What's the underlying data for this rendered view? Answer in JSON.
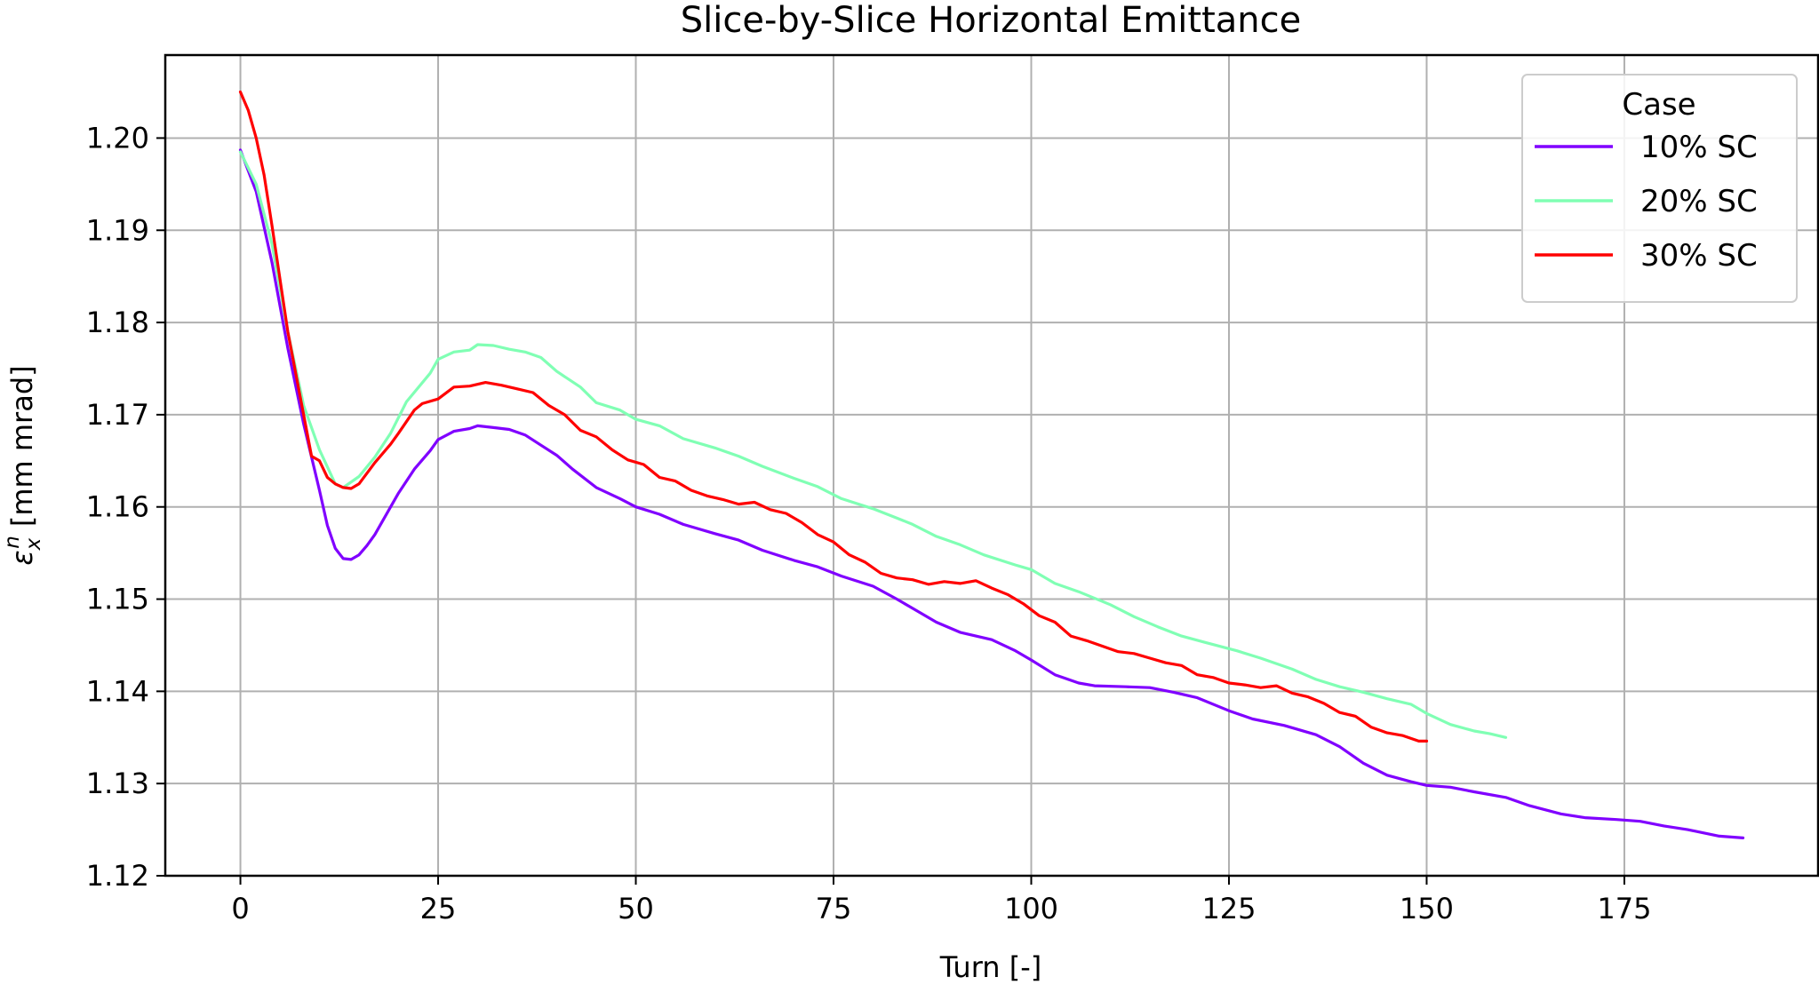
{
  "chart_data": {
    "type": "line",
    "title": "Slice-by-Slice Horizontal Emittance",
    "xlabel": "Turn [-]",
    "ylabel": {
      "symbol": "ε",
      "superscript": "n",
      "subscript": "x",
      "units": "[mm mrad]"
    },
    "xlim": [
      -9.5,
      199.5
    ],
    "ylim": [
      1.12,
      1.209
    ],
    "xticks": [
      0,
      25,
      50,
      75,
      100,
      125,
      150,
      175
    ],
    "xtick_labels": [
      "0",
      "25",
      "50",
      "75",
      "100",
      "125",
      "150",
      "175"
    ],
    "yticks": [
      1.12,
      1.13,
      1.14,
      1.15,
      1.16,
      1.17,
      1.18,
      1.19,
      1.2
    ],
    "ytick_labels": [
      "1.12",
      "1.13",
      "1.14",
      "1.15",
      "1.16",
      "1.17",
      "1.18",
      "1.19",
      "1.20"
    ],
    "grid": true,
    "legend": {
      "title": "Case",
      "position": "top-right"
    },
    "series": [
      {
        "name": "10% SC",
        "color": "#8000ff",
        "points": [
          [
            0,
            1.1987
          ],
          [
            2,
            1.1942
          ],
          [
            4,
            1.1865
          ],
          [
            6,
            1.1772
          ],
          [
            8,
            1.169
          ],
          [
            10,
            1.1618
          ],
          [
            11,
            1.158
          ],
          [
            12,
            1.1555
          ],
          [
            13,
            1.1544
          ],
          [
            14,
            1.1543
          ],
          [
            15,
            1.1548
          ],
          [
            16,
            1.1558
          ],
          [
            17,
            1.157
          ],
          [
            18,
            1.1585
          ],
          [
            20,
            1.1615
          ],
          [
            22,
            1.1641
          ],
          [
            24,
            1.1661
          ],
          [
            25,
            1.1673
          ],
          [
            27,
            1.1682
          ],
          [
            29,
            1.1685
          ],
          [
            30,
            1.1688
          ],
          [
            32,
            1.1686
          ],
          [
            34,
            1.1684
          ],
          [
            36,
            1.1678
          ],
          [
            38,
            1.1667
          ],
          [
            40,
            1.1656
          ],
          [
            42,
            1.1641
          ],
          [
            45,
            1.1621
          ],
          [
            48,
            1.1609
          ],
          [
            50,
            1.16
          ],
          [
            53,
            1.1592
          ],
          [
            56,
            1.1581
          ],
          [
            60,
            1.1571
          ],
          [
            63,
            1.1564
          ],
          [
            66,
            1.1553
          ],
          [
            70,
            1.1542
          ],
          [
            73,
            1.1535
          ],
          [
            76,
            1.1525
          ],
          [
            80,
            1.1514
          ],
          [
            83,
            1.15
          ],
          [
            85,
            1.149
          ],
          [
            88,
            1.1475
          ],
          [
            91,
            1.1464
          ],
          [
            95,
            1.1456
          ],
          [
            98,
            1.1444
          ],
          [
            100,
            1.1434
          ],
          [
            103,
            1.1418
          ],
          [
            106,
            1.1409
          ],
          [
            108,
            1.1406
          ],
          [
            112,
            1.1405
          ],
          [
            115,
            1.1404
          ],
          [
            118,
            1.1399
          ],
          [
            121,
            1.1393
          ],
          [
            125,
            1.1379
          ],
          [
            128,
            1.137
          ],
          [
            132,
            1.1363
          ],
          [
            136,
            1.1353
          ],
          [
            139,
            1.134
          ],
          [
            142,
            1.1322
          ],
          [
            145,
            1.1309
          ],
          [
            148,
            1.1302
          ],
          [
            150,
            1.1298
          ],
          [
            153,
            1.1296
          ],
          [
            156,
            1.1291
          ],
          [
            160,
            1.1285
          ],
          [
            163,
            1.1276
          ],
          [
            167,
            1.1267
          ],
          [
            170,
            1.1263
          ],
          [
            174,
            1.1261
          ],
          [
            177,
            1.1259
          ],
          [
            180,
            1.1254
          ],
          [
            183,
            1.125
          ],
          [
            187,
            1.1243
          ],
          [
            190,
            1.1241
          ]
        ]
      },
      {
        "name": "20% SC",
        "color": "#80ffb4",
        "points": [
          [
            0,
            1.1985
          ],
          [
            2,
            1.195
          ],
          [
            4,
            1.1885
          ],
          [
            6,
            1.179
          ],
          [
            8,
            1.171
          ],
          [
            10,
            1.1662
          ],
          [
            12,
            1.1625
          ],
          [
            13,
            1.1621
          ],
          [
            15,
            1.1633
          ],
          [
            17,
            1.1654
          ],
          [
            19,
            1.168
          ],
          [
            21,
            1.1714
          ],
          [
            24,
            1.1745
          ],
          [
            25,
            1.176
          ],
          [
            27,
            1.1768
          ],
          [
            29,
            1.177
          ],
          [
            30,
            1.1776
          ],
          [
            32,
            1.1775
          ],
          [
            34,
            1.1771
          ],
          [
            36,
            1.1768
          ],
          [
            38,
            1.1762
          ],
          [
            40,
            1.1747
          ],
          [
            43,
            1.173
          ],
          [
            45,
            1.1713
          ],
          [
            48,
            1.1705
          ],
          [
            50,
            1.1695
          ],
          [
            53,
            1.1688
          ],
          [
            56,
            1.1674
          ],
          [
            60,
            1.1664
          ],
          [
            63,
            1.1655
          ],
          [
            66,
            1.1644
          ],
          [
            70,
            1.1631
          ],
          [
            73,
            1.1622
          ],
          [
            76,
            1.1609
          ],
          [
            80,
            1.1598
          ],
          [
            83,
            1.1588
          ],
          [
            85,
            1.1581
          ],
          [
            88,
            1.1568
          ],
          [
            91,
            1.1559
          ],
          [
            94,
            1.1548
          ],
          [
            98,
            1.1537
          ],
          [
            100,
            1.1532
          ],
          [
            103,
            1.1517
          ],
          [
            106,
            1.1508
          ],
          [
            110,
            1.1494
          ],
          [
            113,
            1.1481
          ],
          [
            116,
            1.147
          ],
          [
            119,
            1.146
          ],
          [
            122,
            1.1453
          ],
          [
            126,
            1.1444
          ],
          [
            129,
            1.1436
          ],
          [
            133,
            1.1424
          ],
          [
            136,
            1.1413
          ],
          [
            139,
            1.1405
          ],
          [
            142,
            1.1399
          ],
          [
            145,
            1.1392
          ],
          [
            148,
            1.1386
          ],
          [
            150,
            1.1376
          ],
          [
            153,
            1.1364
          ],
          [
            156,
            1.1357
          ],
          [
            158,
            1.1354
          ],
          [
            160,
            1.135
          ]
        ]
      },
      {
        "name": "30% SC",
        "color": "#ff0000",
        "points": [
          [
            0,
            1.205
          ],
          [
            1,
            1.203
          ],
          [
            2,
            1.2
          ],
          [
            3,
            1.196
          ],
          [
            4,
            1.1905
          ],
          [
            6,
            1.179
          ],
          [
            8,
            1.17
          ],
          [
            9,
            1.1655
          ],
          [
            10,
            1.165
          ],
          [
            11,
            1.1632
          ],
          [
            12,
            1.1625
          ],
          [
            13,
            1.1621
          ],
          [
            14,
            1.162
          ],
          [
            15,
            1.1625
          ],
          [
            17,
            1.1648
          ],
          [
            19,
            1.1668
          ],
          [
            20,
            1.168
          ],
          [
            22,
            1.1705
          ],
          [
            23,
            1.1712
          ],
          [
            25,
            1.1717
          ],
          [
            27,
            1.173
          ],
          [
            29,
            1.1731
          ],
          [
            31,
            1.1735
          ],
          [
            33,
            1.1732
          ],
          [
            35,
            1.1728
          ],
          [
            37,
            1.1724
          ],
          [
            39,
            1.171
          ],
          [
            41,
            1.17
          ],
          [
            43,
            1.1683
          ],
          [
            45,
            1.1676
          ],
          [
            47,
            1.1662
          ],
          [
            49,
            1.1651
          ],
          [
            51,
            1.1646
          ],
          [
            53,
            1.1632
          ],
          [
            55,
            1.1628
          ],
          [
            57,
            1.1618
          ],
          [
            59,
            1.1612
          ],
          [
            61,
            1.1608
          ],
          [
            63,
            1.1603
          ],
          [
            65,
            1.1605
          ],
          [
            67,
            1.1597
          ],
          [
            69,
            1.1593
          ],
          [
            71,
            1.1583
          ],
          [
            73,
            1.157
          ],
          [
            75,
            1.1562
          ],
          [
            77,
            1.1548
          ],
          [
            79,
            1.154
          ],
          [
            81,
            1.1528
          ],
          [
            83,
            1.1523
          ],
          [
            85,
            1.1521
          ],
          [
            87,
            1.1516
          ],
          [
            89,
            1.1519
          ],
          [
            91,
            1.1517
          ],
          [
            93,
            1.152
          ],
          [
            95,
            1.1512
          ],
          [
            97,
            1.1505
          ],
          [
            99,
            1.1495
          ],
          [
            101,
            1.1482
          ],
          [
            103,
            1.1475
          ],
          [
            105,
            1.146
          ],
          [
            107,
            1.1455
          ],
          [
            109,
            1.1449
          ],
          [
            111,
            1.1443
          ],
          [
            113,
            1.1441
          ],
          [
            115,
            1.1436
          ],
          [
            117,
            1.1431
          ],
          [
            119,
            1.1428
          ],
          [
            121,
            1.1418
          ],
          [
            123,
            1.1415
          ],
          [
            125,
            1.1409
          ],
          [
            127,
            1.1407
          ],
          [
            129,
            1.1404
          ],
          [
            131,
            1.1406
          ],
          [
            133,
            1.1398
          ],
          [
            135,
            1.1394
          ],
          [
            137,
            1.1387
          ],
          [
            139,
            1.1377
          ],
          [
            141,
            1.1373
          ],
          [
            143,
            1.1361
          ],
          [
            145,
            1.1355
          ],
          [
            147,
            1.1352
          ],
          [
            149,
            1.1346
          ],
          [
            150,
            1.1346
          ]
        ]
      }
    ]
  }
}
